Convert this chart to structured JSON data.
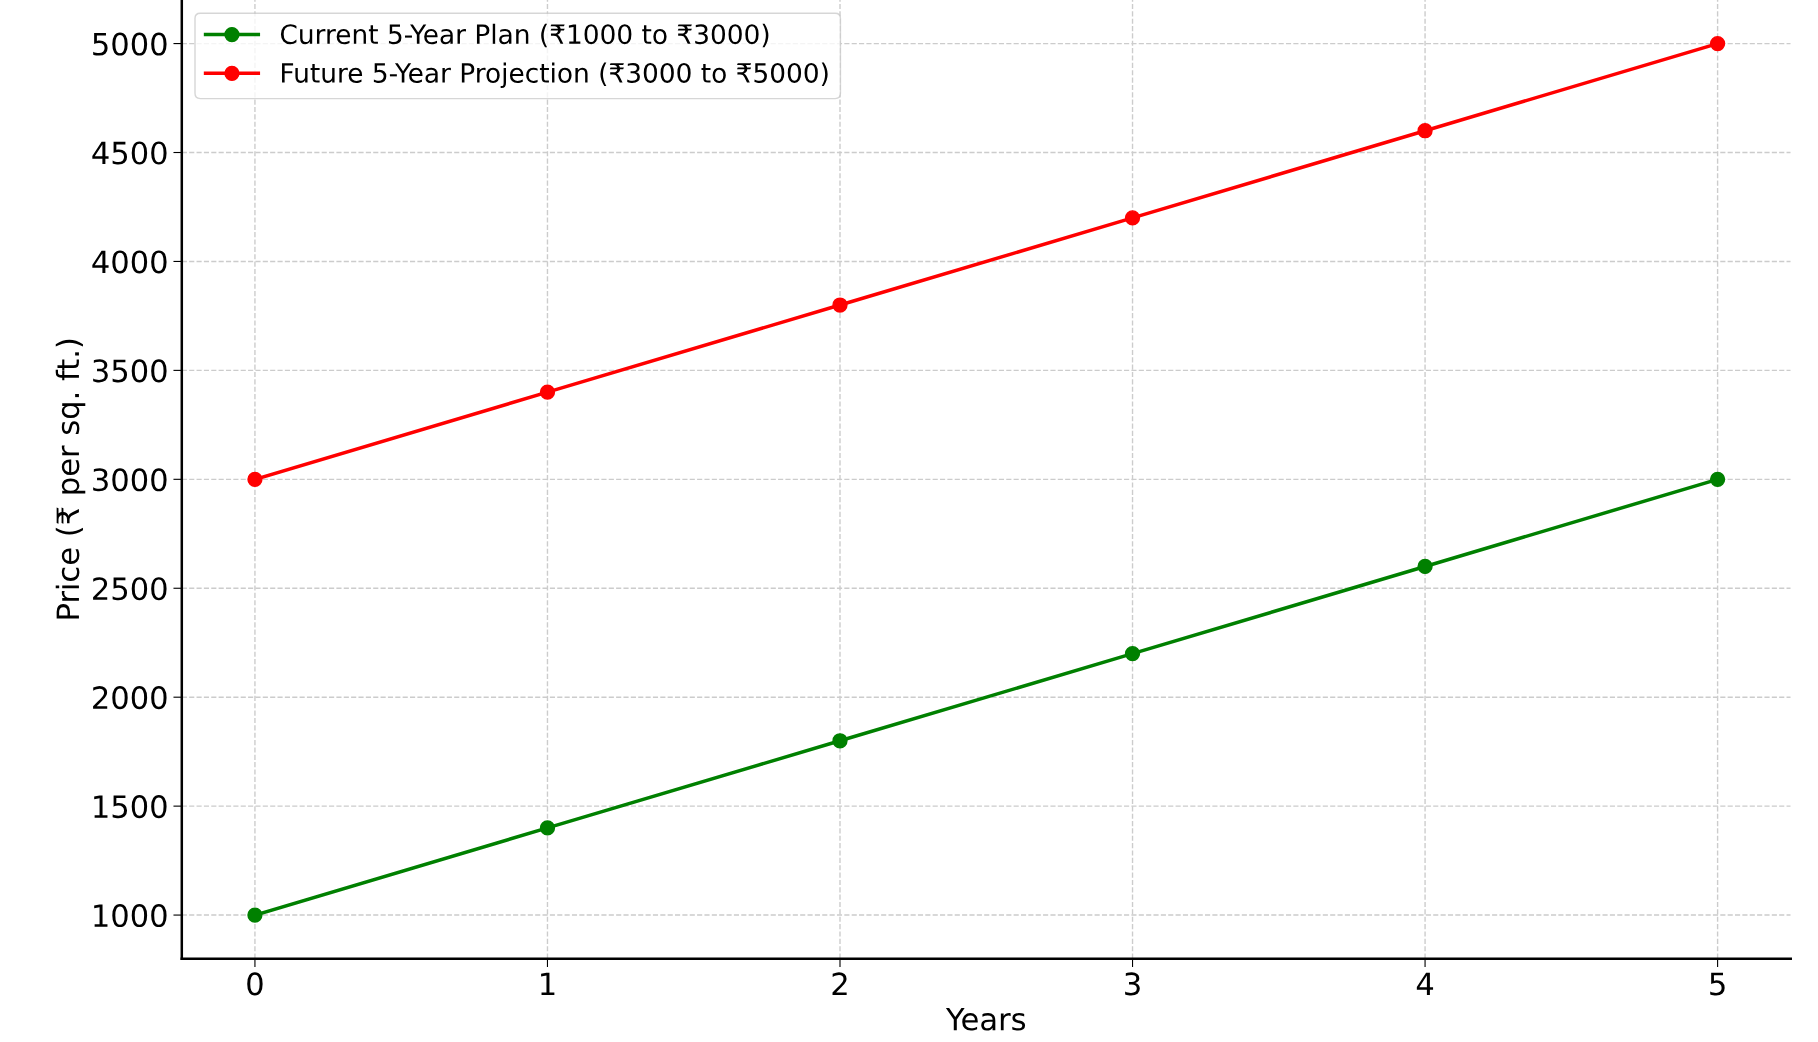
{
  "chart_data": {
    "type": "line",
    "xlabel": "Years",
    "ylabel": "Price (₹ per sq. ft.)",
    "x": [
      0,
      1,
      2,
      3,
      4,
      5
    ],
    "series": [
      {
        "name": "Current 5-Year Plan (₹1000 to ₹3000)",
        "color": "#008000",
        "values": [
          1000,
          1400,
          1800,
          2200,
          2600,
          3000
        ]
      },
      {
        "name": "Future 5-Year Projection (₹3000 to ₹5000)",
        "color": "#ff0000",
        "values": [
          3000,
          3400,
          3800,
          4200,
          4600,
          5000
        ]
      }
    ],
    "xlim": [
      -0.25,
      5.25
    ],
    "xticks": [
      0,
      1,
      2,
      3,
      4,
      5
    ],
    "ylim": [
      800,
      5200
    ],
    "yticks": [
      1000,
      1500,
      2000,
      2500,
      3000,
      3500,
      4000,
      4500,
      5000
    ],
    "grid": true,
    "legend": "top left",
    "marker": "circle",
    "line_style": "solid"
  }
}
